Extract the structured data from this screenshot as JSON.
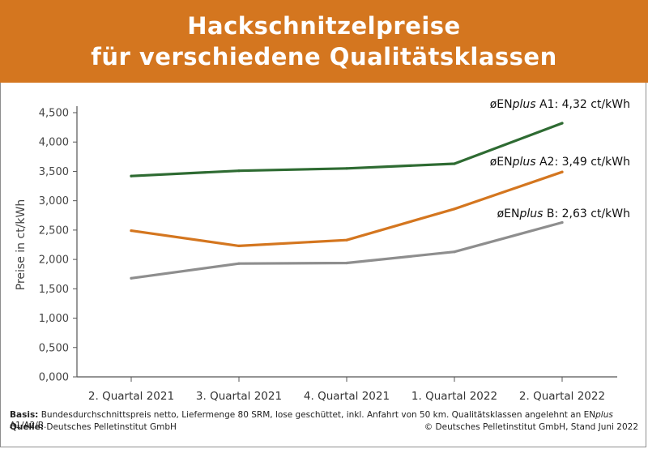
{
  "title_line1": "Hackschnitzelpreise",
  "title_line2": "für verschiedene Qualitätsklassen",
  "colors": {
    "header": "#d4761f",
    "a1": "#2e6b32",
    "a2": "#d4761f",
    "b": "#8e8e8e"
  },
  "chart_data": {
    "type": "line",
    "ylabel": "Preise in ct/kWh",
    "xlabel": "",
    "ylim": [
      0,
      4.5
    ],
    "yticks": [
      "0,000",
      "0,500",
      "1,000",
      "1,500",
      "2,000",
      "2,500",
      "3,000",
      "3,500",
      "4,000",
      "4,500"
    ],
    "categories": [
      "2. Quartal 2021",
      "3. Quartal 2021",
      "4. Quartal 2021",
      "1. Quartal 2022",
      "2. Quartal 2022"
    ],
    "grid": false,
    "series": [
      {
        "name_prefix": "øEN",
        "name_italic": "plus",
        "name_suffix": " A1:",
        "value_label": "4,32 ct/kWh",
        "values": [
          3.42,
          3.51,
          3.55,
          3.63,
          4.32
        ]
      },
      {
        "name_prefix": "øEN",
        "name_italic": "plus",
        "name_suffix": " A2:",
        "value_label": "3,49 ct/kWh",
        "values": [
          2.49,
          2.23,
          2.33,
          2.86,
          3.49
        ]
      },
      {
        "name_prefix": "øEN",
        "name_italic": "plus",
        "name_suffix": " B:",
        "value_label": "2,63 ct/kWh",
        "values": [
          1.68,
          1.93,
          1.94,
          2.13,
          2.63
        ]
      }
    ]
  },
  "footer": {
    "basis_label": "Basis:",
    "basis_text": " Bundesdurchschnittspreis netto, Liefermenge 80 SRM, lose geschüttet, inkl. Anfahrt von 50 km. Qualitätsklassen angelehnt an EN",
    "basis_italic": "plus",
    "basis_end": " A1/A2/B.",
    "source_label": "Quelle:",
    "source_text": " Deutsches Pelletinstitut GmbH",
    "copyright": "© Deutsches Pelletinstitut GmbH, Stand Juni 2022"
  }
}
